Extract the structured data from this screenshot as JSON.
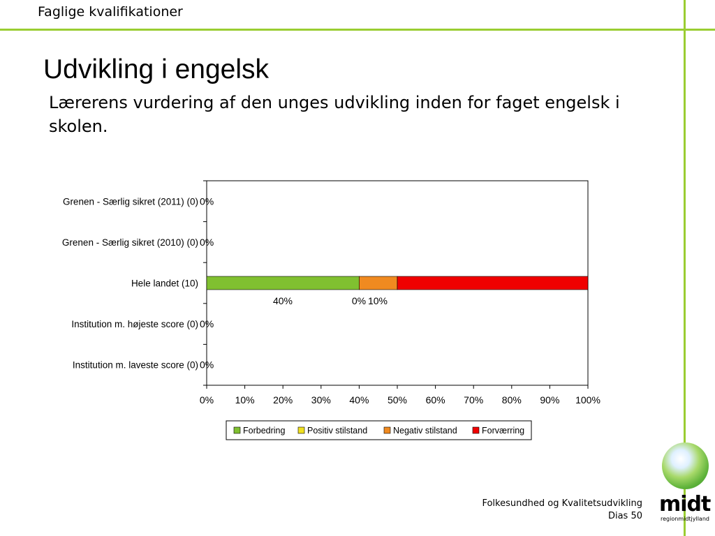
{
  "header": {
    "label": "Faglige kvalifikationer",
    "accent_color": "#9acd32"
  },
  "title": "Udvikling i engelsk",
  "subtitle": "Lærerens vurdering af den unges udvikling inden for faget engelsk i skolen.",
  "chart_data": {
    "type": "bar",
    "orientation": "horizontal",
    "stacked": "percent",
    "categories": [
      "Grenen - Særlig sikret (2011)   (0)",
      "Grenen - Særlig sikret (2010)   (0)",
      "Hele landet (10)",
      "Institution m. højeste score (0)",
      "Institution m. laveste score (0)"
    ],
    "series": [
      {
        "name": "Forbedring",
        "color": "#80c030",
        "values": [
          0,
          0,
          40,
          0,
          0
        ]
      },
      {
        "name": "Positiv stilstand",
        "color": "#f0e020",
        "values": [
          0,
          0,
          0,
          0,
          0
        ]
      },
      {
        "name": "Negativ stilstand",
        "color": "#f08a20",
        "values": [
          0,
          0,
          10,
          0,
          0
        ]
      },
      {
        "name": "Forværring",
        "color": "#f00000",
        "values": [
          0,
          0,
          50,
          0,
          0
        ]
      }
    ],
    "data_labels": [
      "0%",
      "0%",
      "",
      "0%",
      "0%"
    ],
    "bar_labels": {
      "forbedring": "40%",
      "positiv": "0%",
      "negativ": "10%",
      "forvaerring": "50%"
    },
    "x_ticks": [
      "0%",
      "10%",
      "20%",
      "30%",
      "40%",
      "50%",
      "60%",
      "70%",
      "80%",
      "90%",
      "100%"
    ],
    "xlim": [
      0,
      100
    ],
    "legend_position": "bottom",
    "grid": false
  },
  "footer": {
    "line1": "Folkesundhed og Kvalitetsudvikling",
    "line2": "Dias 50"
  },
  "logo": {
    "word": "midt",
    "sub": "regionmidtjylland"
  }
}
